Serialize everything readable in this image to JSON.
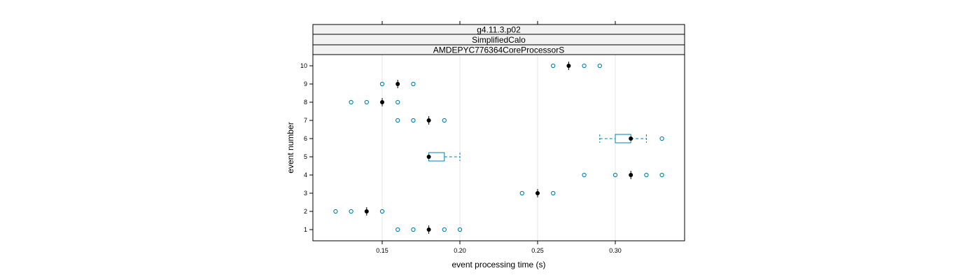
{
  "chart_data": {
    "type": "box",
    "strips": [
      "g4.11.3.p02",
      "SimplifiedCalo",
      "AMDEPYC776364CoreProcessorS"
    ],
    "xlabel": "event processing time (s)",
    "ylabel": "event number",
    "xlim": [
      0.11,
      0.35
    ],
    "x_ticks": [
      0.15,
      0.2,
      0.25,
      0.3
    ],
    "x_tick_labels": [
      "0.15",
      "0.20",
      "0.25",
      "0.30"
    ],
    "y_ticks": [
      "1",
      "2",
      "3",
      "4",
      "5",
      "6",
      "7",
      "8",
      "9",
      "10"
    ],
    "grid": true,
    "colors": {
      "box": "#0080b0",
      "median": "#000000",
      "outlier": "#0080b0",
      "grid": "#e6e6e6",
      "strip": "#f2f2f2"
    },
    "events": [
      {
        "event": 1,
        "median": 0.18,
        "q1": 0.18,
        "q3": 0.18,
        "whisker_low": 0.18,
        "whisker_high": 0.18,
        "outliers": [
          0.16,
          0.17,
          0.19,
          0.2
        ]
      },
      {
        "event": 2,
        "median": 0.14,
        "q1": 0.14,
        "q3": 0.14,
        "whisker_low": 0.14,
        "whisker_high": 0.14,
        "outliers": [
          0.12,
          0.13,
          0.15
        ]
      },
      {
        "event": 3,
        "median": 0.25,
        "q1": 0.25,
        "q3": 0.25,
        "whisker_low": 0.25,
        "whisker_high": 0.25,
        "outliers": [
          0.24,
          0.26
        ]
      },
      {
        "event": 4,
        "median": 0.31,
        "q1": 0.31,
        "q3": 0.31,
        "whisker_low": 0.31,
        "whisker_high": 0.31,
        "outliers": [
          0.28,
          0.3,
          0.32,
          0.33
        ]
      },
      {
        "event": 5,
        "median": 0.18,
        "q1": 0.18,
        "q3": 0.19,
        "whisker_low": 0.18,
        "whisker_high": 0.2,
        "outliers": []
      },
      {
        "event": 6,
        "median": 0.31,
        "q1": 0.3,
        "q3": 0.31,
        "whisker_low": 0.29,
        "whisker_high": 0.32,
        "outliers": [
          0.33
        ]
      },
      {
        "event": 7,
        "median": 0.18,
        "q1": 0.18,
        "q3": 0.18,
        "whisker_low": 0.18,
        "whisker_high": 0.18,
        "outliers": [
          0.16,
          0.17,
          0.19
        ]
      },
      {
        "event": 8,
        "median": 0.15,
        "q1": 0.15,
        "q3": 0.15,
        "whisker_low": 0.15,
        "whisker_high": 0.15,
        "outliers": [
          0.13,
          0.14,
          0.16
        ]
      },
      {
        "event": 9,
        "median": 0.16,
        "q1": 0.16,
        "q3": 0.16,
        "whisker_low": 0.16,
        "whisker_high": 0.16,
        "outliers": [
          0.15,
          0.17
        ]
      },
      {
        "event": 10,
        "median": 0.27,
        "q1": 0.27,
        "q3": 0.27,
        "whisker_low": 0.27,
        "whisker_high": 0.27,
        "outliers": [
          0.26,
          0.28,
          0.29
        ]
      }
    ]
  }
}
